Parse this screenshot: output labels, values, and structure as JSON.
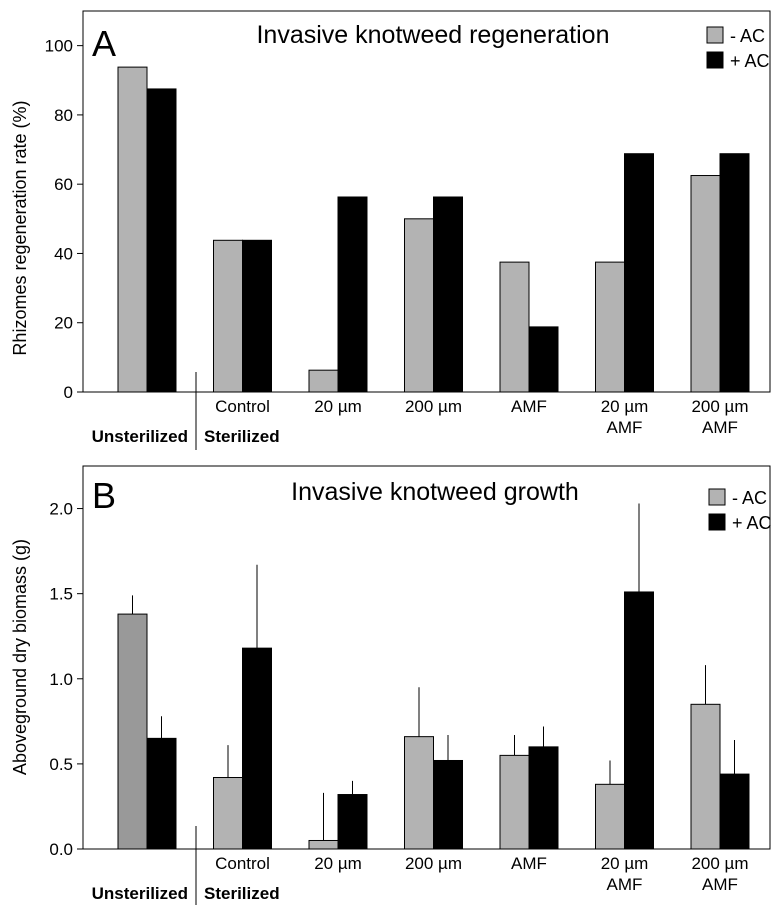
{
  "chart_data": [
    {
      "type": "bar",
      "panel_letter": "A",
      "title": "Invasive knotweed regeneration",
      "xlabel": "",
      "ylabel": "Rhizomes regeneration rate (%)",
      "ylim": [
        0,
        110
      ],
      "yticks": [
        0,
        20,
        40,
        60,
        80,
        100
      ],
      "categories": [
        "",
        "Control",
        "20 µm",
        "200 µm",
        "AMF",
        "20 µm\nAMF",
        "200 µm\nAMF"
      ],
      "category_lines": [
        [
          ""
        ],
        [
          "Control"
        ],
        [
          "20 µm"
        ],
        [
          "200 µm"
        ],
        [
          "AMF"
        ],
        [
          "20 µm",
          "AMF"
        ],
        [
          "200 µm",
          "AMF"
        ]
      ],
      "group_labels": [
        "Unsterilized",
        "Sterilized"
      ],
      "series": [
        {
          "name": "- AC",
          "color": "#b3b3b3",
          "values": [
            93.8,
            43.8,
            6.3,
            50.0,
            37.5,
            37.5,
            62.5
          ]
        },
        {
          "name": "+ AC",
          "color": "#000000",
          "values": [
            87.5,
            43.8,
            56.3,
            56.3,
            18.8,
            68.8,
            68.8
          ]
        }
      ],
      "legend_position": "top-right",
      "grid": false
    },
    {
      "type": "bar",
      "panel_letter": "B",
      "title": "Invasive knotweed growth",
      "xlabel": "",
      "ylabel": "Aboveground dry biomass (g)",
      "ylim": [
        0,
        2.25
      ],
      "yticks": [
        0.0,
        0.5,
        1.0,
        1.5,
        2.0
      ],
      "ytick_labels": [
        "0.0",
        "0.5",
        "1.0",
        "1.5",
        "2.0"
      ],
      "categories": [
        "",
        "Control",
        "20 µm",
        "200 µm",
        "AMF",
        "20 µm\nAMF",
        "200 µm\nAMF"
      ],
      "category_lines": [
        [
          ""
        ],
        [
          "Control"
        ],
        [
          "20 µm"
        ],
        [
          "200 µm"
        ],
        [
          "AMF"
        ],
        [
          "20 µm",
          "AMF"
        ],
        [
          "200 µm",
          "AMF"
        ]
      ],
      "group_labels": [
        "Unsterilized",
        "Sterilized"
      ],
      "series": [
        {
          "name": "- AC",
          "color": "#b3b3b3",
          "first_bar_color": "#999999",
          "values": [
            1.38,
            0.42,
            0.05,
            0.66,
            0.55,
            0.38,
            0.85
          ],
          "errors": [
            0.11,
            0.19,
            0.28,
            0.29,
            0.12,
            0.14,
            0.23
          ]
        },
        {
          "name": "+ AC",
          "color": "#000000",
          "values": [
            0.65,
            1.18,
            0.32,
            0.52,
            0.6,
            1.51,
            0.44
          ],
          "errors": [
            0.13,
            0.49,
            0.08,
            0.15,
            0.12,
            0.52,
            0.2
          ]
        }
      ],
      "legend_position": "top-right",
      "grid": false
    }
  ]
}
